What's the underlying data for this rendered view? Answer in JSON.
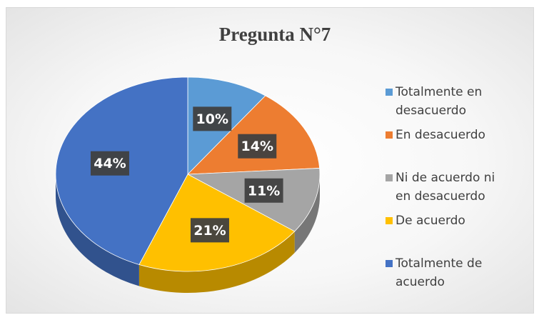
{
  "chart_data": {
    "type": "pie",
    "title": "Pregunta N°7",
    "categories": [
      "Totalmente en desacuerdo",
      "En desacuerdo",
      "Ni de acuerdo ni en desacuerdo",
      "De acuerdo",
      "Totalmente de acuerdo"
    ],
    "values": [
      10,
      14,
      11,
      21,
      44
    ],
    "value_labels": [
      "10%",
      "14%",
      "11%",
      "21%",
      "44%"
    ],
    "colors": [
      "#5b9bd5",
      "#ed7d31",
      "#a5a5a5",
      "#ffc000",
      "#4472c4"
    ],
    "legend": "right"
  }
}
